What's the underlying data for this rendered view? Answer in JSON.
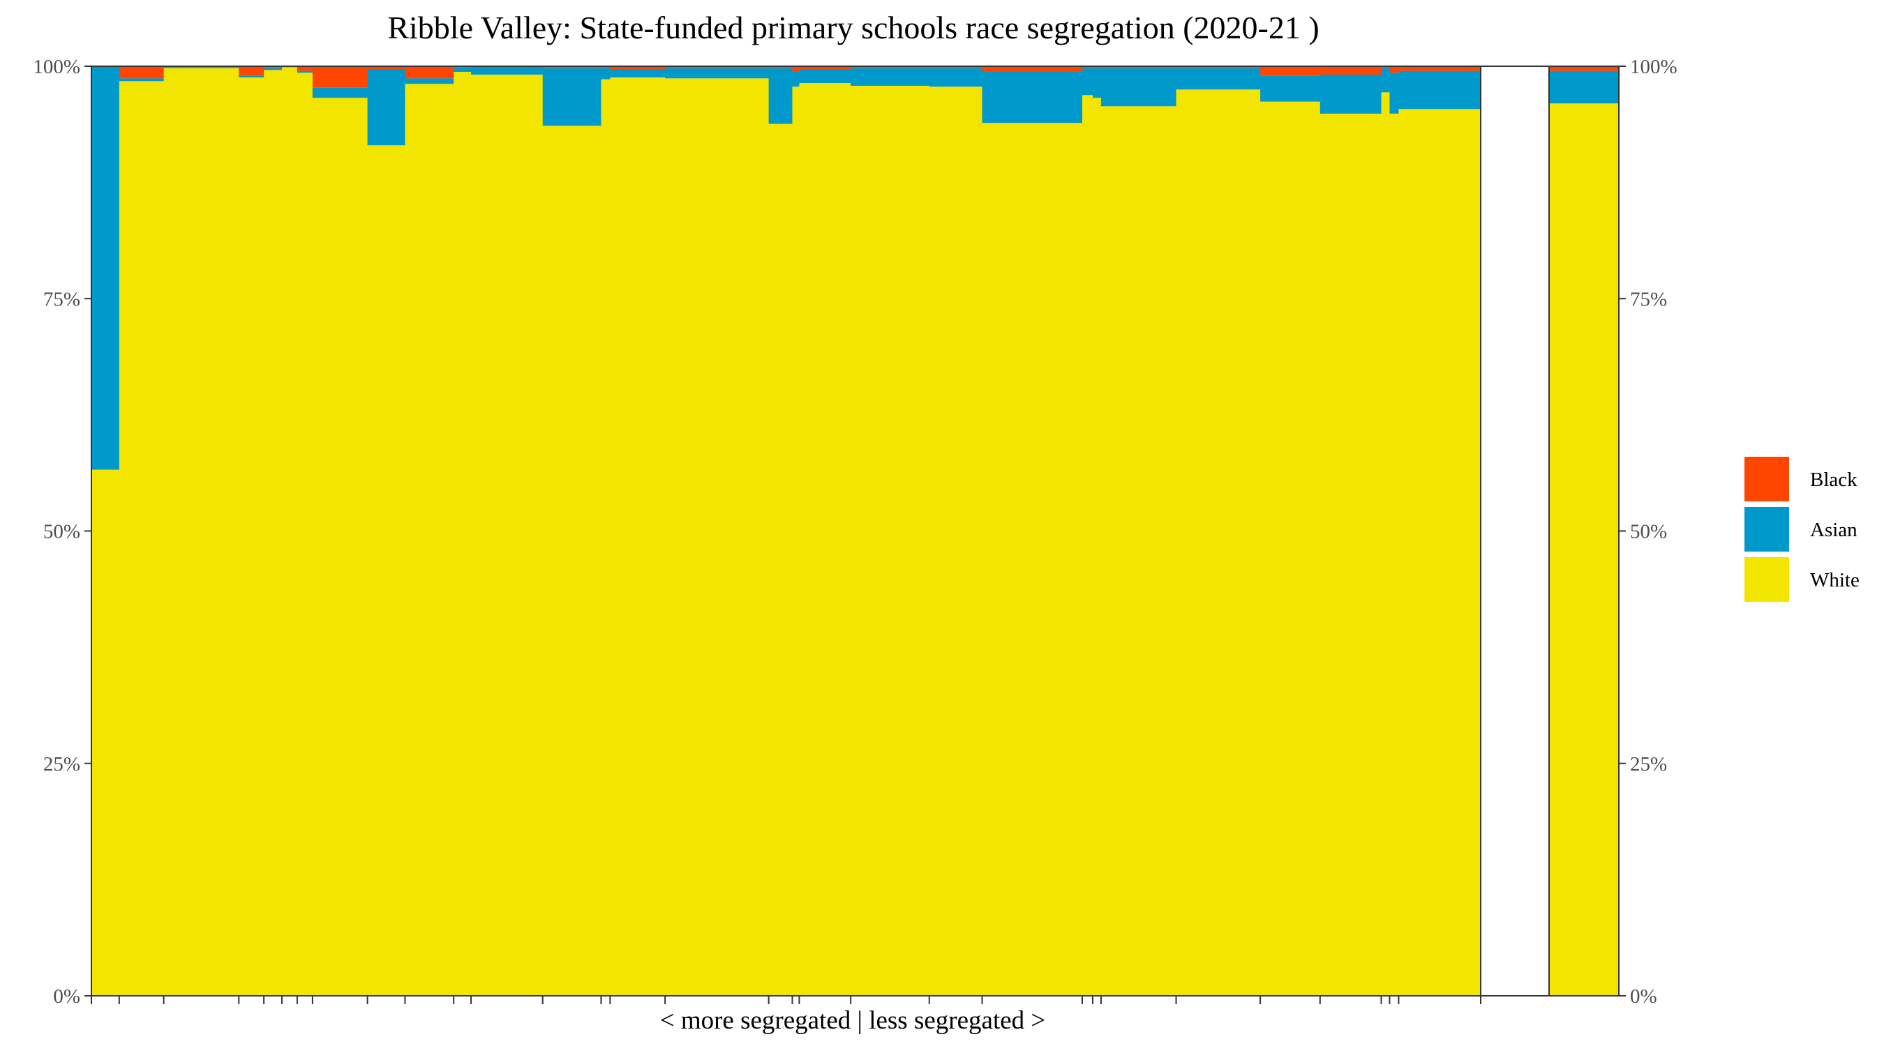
{
  "chart_data": {
    "type": "bar",
    "subtype": "stacked-variable-width (mekko)",
    "title": "Ribble Valley: State-funded primary schools race segregation (2020-21 )",
    "xlabel": "< more segregated | less segregated >",
    "ylabel": "",
    "ylim": [
      0,
      100
    ],
    "y_tick_labels": [
      "0%",
      "25%",
      "50%",
      "75%",
      "100%"
    ],
    "y_axis_sides": "left and right",
    "legend_position": "right",
    "series": [
      {
        "name": "Black",
        "color": "#FF4500"
      },
      {
        "name": "Asian",
        "color": "#0099CC"
      },
      {
        "name": "White",
        "color": "#F2E500"
      }
    ],
    "schools": [
      {
        "share": 40,
        "white": 56.6,
        "asian": 43.4,
        "black": 0.0
      },
      {
        "share": 64,
        "white": 98.4,
        "asian": 0.3,
        "black": 1.3
      },
      {
        "share": 108,
        "white": 99.8,
        "asian": 0.1,
        "black": 0.1
      },
      {
        "share": 36,
        "white": 98.8,
        "asian": 0.2,
        "black": 1.0
      },
      {
        "share": 26,
        "white": 99.6,
        "asian": 0.2,
        "black": 0.2
      },
      {
        "share": 22,
        "white": 99.9,
        "asian": 0.1,
        "black": 0.0
      },
      {
        "share": 22,
        "white": 99.3,
        "asian": 0.2,
        "black": 0.5
      },
      {
        "share": 79,
        "white": 96.6,
        "asian": 1.1,
        "black": 2.3
      },
      {
        "share": 54,
        "white": 91.5,
        "asian": 8.2,
        "black": 0.3
      },
      {
        "share": 70,
        "white": 98.1,
        "asian": 0.6,
        "black": 1.3
      },
      {
        "share": 25,
        "white": 99.4,
        "asian": 0.5,
        "black": 0.1
      },
      {
        "share": 103,
        "white": 99.1,
        "asian": 0.9,
        "black": 0.0
      },
      {
        "share": 84,
        "white": 93.6,
        "asian": 6.2,
        "black": 0.2
      },
      {
        "share": 13,
        "white": 98.6,
        "asian": 1.2,
        "black": 0.2
      },
      {
        "share": 79,
        "white": 98.8,
        "asian": 0.9,
        "black": 0.3
      },
      {
        "share": 149,
        "white": 98.7,
        "asian": 1.1,
        "black": 0.2
      },
      {
        "share": 34,
        "white": 93.8,
        "asian": 6.0,
        "black": 0.2
      },
      {
        "share": 10,
        "white": 97.8,
        "asian": 1.6,
        "black": 0.6
      },
      {
        "share": 74,
        "white": 98.2,
        "asian": 1.5,
        "black": 0.3
      },
      {
        "share": 113,
        "white": 97.9,
        "asian": 1.9,
        "black": 0.2
      },
      {
        "share": 76,
        "white": 97.8,
        "asian": 2.0,
        "black": 0.2
      },
      {
        "share": 144,
        "white": 93.9,
        "asian": 5.5,
        "black": 0.6
      },
      {
        "share": 15,
        "white": 96.9,
        "asian": 2.9,
        "black": 0.2
      },
      {
        "share": 12,
        "white": 96.6,
        "asian": 3.2,
        "black": 0.2
      },
      {
        "share": 108,
        "white": 95.7,
        "asian": 4.1,
        "black": 0.2
      },
      {
        "share": 121,
        "white": 97.5,
        "asian": 2.3,
        "black": 0.2
      },
      {
        "share": 86,
        "white": 96.2,
        "asian": 2.8,
        "black": 1.0
      },
      {
        "share": 88,
        "white": 94.9,
        "asian": 4.2,
        "black": 0.9
      },
      {
        "share": 12,
        "white": 97.2,
        "asian": 2.6,
        "black": 0.2
      },
      {
        "share": 13,
        "white": 94.9,
        "asian": 4.4,
        "black": 0.7
      },
      {
        "share": 118,
        "white": 95.4,
        "asian": 4.1,
        "black": 0.5
      }
    ],
    "total_bar": {
      "white": 96.0,
      "asian": 3.5,
      "black": 0.5
    }
  }
}
